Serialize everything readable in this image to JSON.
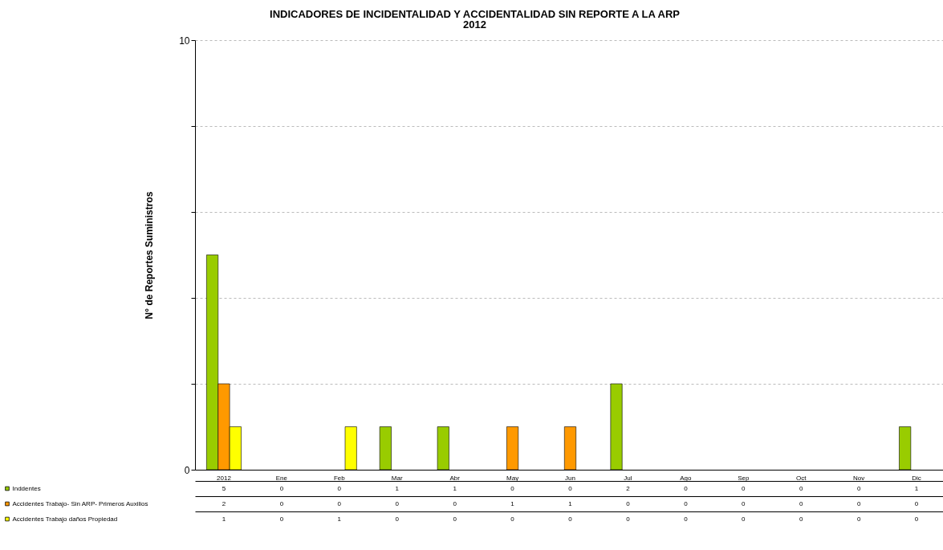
{
  "chart_data": {
    "type": "bar",
    "title": "INDICADORES DE INCIDENTALIDAD Y ACCIDENTALIDAD SIN REPORTE A LA ARP",
    "subtitle": "2012",
    "ylabel": "N° de Reportes Suministros",
    "categories": [
      "2012",
      "Ene",
      "Feb",
      "Mar",
      "Abr",
      "May",
      "Jun",
      "Jul",
      "Ago",
      "Sep",
      "Oct",
      "Nov",
      "Dic"
    ],
    "series": [
      {
        "name": "Inddentes",
        "color": "#99cc00",
        "values": [
          5,
          0,
          0,
          1,
          1,
          0,
          0,
          2,
          0,
          0,
          0,
          0,
          1
        ]
      },
      {
        "name": "Accidentes Trabajo- Sin ARP- Primeros Auxilios",
        "color": "#ff9900",
        "values": [
          2,
          0,
          0,
          0,
          0,
          1,
          1,
          0,
          0,
          0,
          0,
          0,
          0
        ]
      },
      {
        "name": "Accidentes Trabajo daños Propiedad",
        "color": "#ffff00",
        "values": [
          1,
          0,
          1,
          0,
          0,
          0,
          0,
          0,
          0,
          0,
          0,
          0,
          0
        ]
      }
    ],
    "ylim": [
      0,
      10
    ],
    "yticks": [
      0,
      {
        "value": 2,
        "label": null
      },
      {
        "value": 4,
        "label": null
      },
      {
        "value": 6,
        "label": null
      },
      {
        "value": 8,
        "label": null
      },
      10
    ],
    "grid": "y",
    "legend": "bottom left",
    "data_labels": true
  }
}
